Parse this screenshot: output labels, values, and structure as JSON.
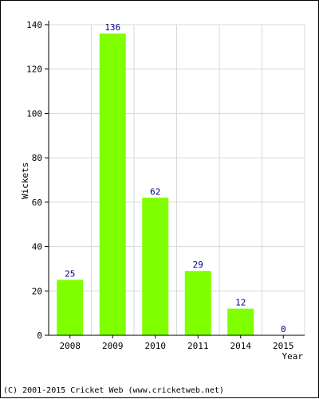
{
  "chart_data": {
    "type": "bar",
    "categories": [
      "2008",
      "2009",
      "2010",
      "2011",
      "2014",
      "2015"
    ],
    "values": [
      25,
      136,
      62,
      29,
      12,
      0
    ],
    "xlabel": "Year",
    "ylabel": "Wickets",
    "ylim": [
      0,
      140
    ],
    "yticks": [
      0,
      20,
      40,
      60,
      80,
      100,
      120,
      140
    ],
    "grid": true,
    "colors": {
      "bar": "#80ff00",
      "data_label": "#000080",
      "grid": "#d9d9d9",
      "axis": "#000000"
    }
  },
  "footer": {
    "copyright": "(C) 2001-2015 Cricket Web (www.cricketweb.net)"
  }
}
